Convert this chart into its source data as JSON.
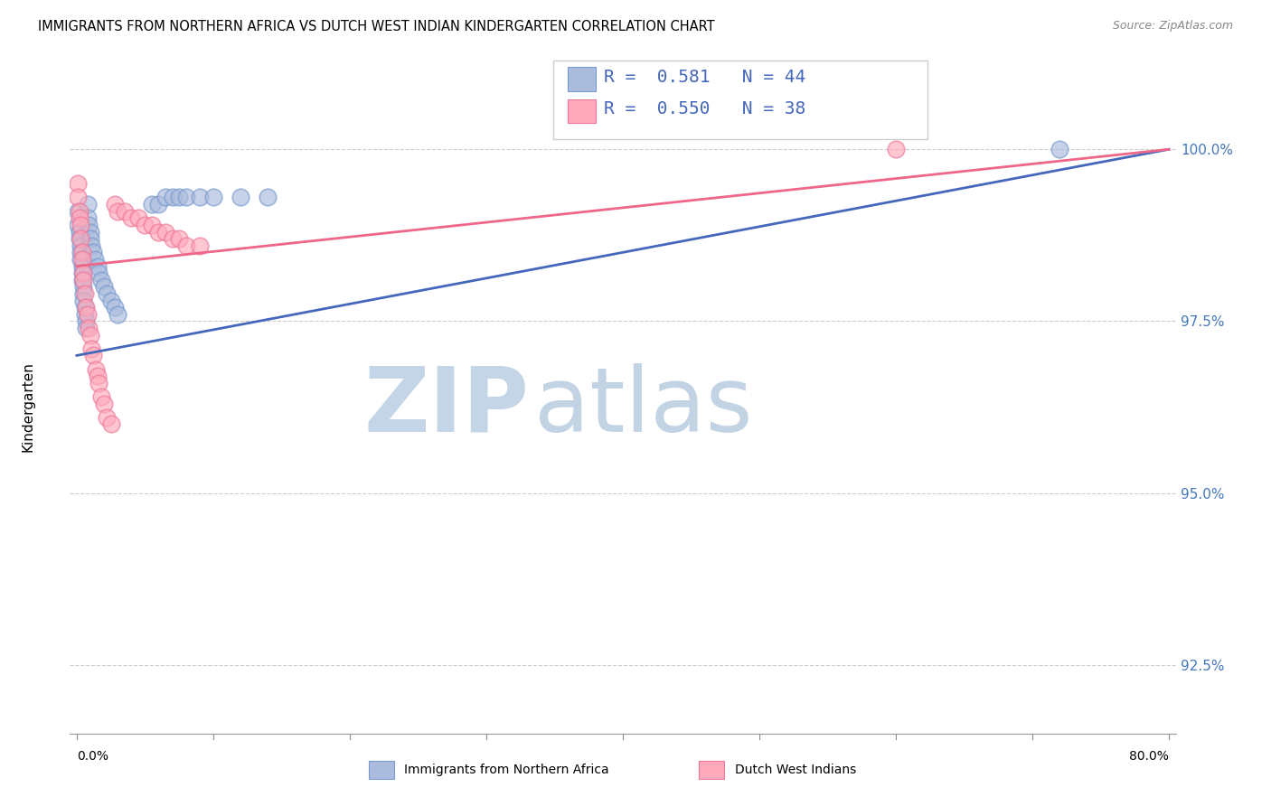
{
  "title": "IMMIGRANTS FROM NORTHERN AFRICA VS DUTCH WEST INDIAN KINDERGARTEN CORRELATION CHART",
  "source": "Source: ZipAtlas.com",
  "ylabel": "Kindergarten",
  "ytick_labels": [
    "100.0%",
    "97.5%",
    "95.0%",
    "92.5%"
  ],
  "ytick_values": [
    1.0,
    0.975,
    0.95,
    0.925
  ],
  "xlim": [
    0.0,
    0.8
  ],
  "ylim": [
    0.915,
    1.01
  ],
  "blue_color": "#AABBDD",
  "pink_color": "#FFAABB",
  "blue_edge_color": "#7799CC",
  "pink_edge_color": "#EE7799",
  "blue_line_color": "#4466BB",
  "pink_line_color": "#EE6688",
  "watermark_zip_color": "#C8D8EC",
  "watermark_atlas_color": "#B0C8E0",
  "legend_label1": "Immigrants from Northern Africa",
  "legend_label2": "Dutch West Indians",
  "legend_r_color": "#4466BB",
  "legend_n_color": "#4466BB",
  "blue_x": [
    0.001,
    0.001,
    0.002,
    0.002,
    0.003,
    0.003,
    0.003,
    0.004,
    0.004,
    0.004,
    0.005,
    0.005,
    0.005,
    0.006,
    0.006,
    0.007,
    0.007,
    0.008,
    0.008,
    0.009,
    0.01,
    0.01,
    0.011,
    0.012,
    0.013,
    0.015,
    0.016,
    0.018,
    0.02,
    0.022,
    0.025,
    0.028,
    0.03,
    0.055,
    0.06,
    0.065,
    0.07,
    0.075,
    0.08,
    0.09,
    0.1,
    0.12,
    0.14,
    0.72
  ],
  "blue_y": [
    0.991,
    0.989,
    0.988,
    0.987,
    0.986,
    0.985,
    0.984,
    0.983,
    0.982,
    0.981,
    0.98,
    0.979,
    0.978,
    0.977,
    0.976,
    0.975,
    0.974,
    0.992,
    0.99,
    0.989,
    0.988,
    0.987,
    0.986,
    0.985,
    0.984,
    0.983,
    0.982,
    0.981,
    0.98,
    0.979,
    0.978,
    0.977,
    0.976,
    0.992,
    0.992,
    0.993,
    0.993,
    0.993,
    0.993,
    0.993,
    0.993,
    0.993,
    0.993,
    1.0
  ],
  "pink_x": [
    0.001,
    0.001,
    0.002,
    0.002,
    0.003,
    0.003,
    0.004,
    0.004,
    0.005,
    0.005,
    0.006,
    0.007,
    0.008,
    0.009,
    0.01,
    0.011,
    0.012,
    0.014,
    0.015,
    0.016,
    0.018,
    0.02,
    0.022,
    0.025,
    0.028,
    0.03,
    0.035,
    0.04,
    0.045,
    0.05,
    0.055,
    0.06,
    0.065,
    0.07,
    0.075,
    0.08,
    0.09,
    0.6
  ],
  "pink_y": [
    0.995,
    0.993,
    0.991,
    0.99,
    0.989,
    0.987,
    0.985,
    0.984,
    0.982,
    0.981,
    0.979,
    0.977,
    0.976,
    0.974,
    0.973,
    0.971,
    0.97,
    0.968,
    0.967,
    0.966,
    0.964,
    0.963,
    0.961,
    0.96,
    0.992,
    0.991,
    0.991,
    0.99,
    0.99,
    0.989,
    0.989,
    0.988,
    0.988,
    0.987,
    0.987,
    0.986,
    0.986,
    1.0
  ],
  "blue_trend_x": [
    0.0,
    0.8
  ],
  "blue_trend_y": [
    0.97,
    1.0
  ],
  "pink_trend_x": [
    0.0,
    0.8
  ],
  "pink_trend_y": [
    0.983,
    1.0
  ]
}
